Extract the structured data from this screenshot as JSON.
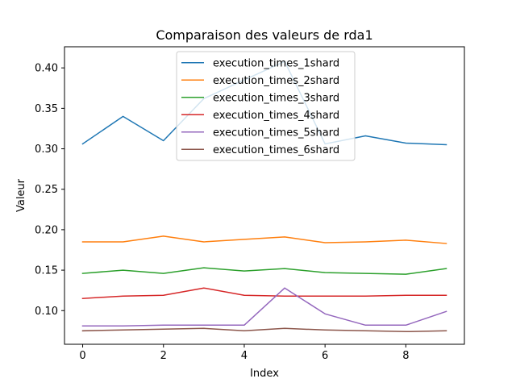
{
  "chart_data": {
    "type": "line",
    "title": "Comparaison des valeurs de rda1",
    "xlabel": "Index",
    "ylabel": "Valeur",
    "xlim": [
      -0.45,
      9.45
    ],
    "ylim": [
      0.0584,
      0.4261
    ],
    "xticks": [
      "0",
      "2",
      "4",
      "6",
      "8"
    ],
    "yticks": [
      "0.10",
      "0.15",
      "0.20",
      "0.25",
      "0.30",
      "0.35",
      "0.40"
    ],
    "grid": false,
    "legend_position": "top-center",
    "x": [
      0,
      1,
      2,
      3,
      4,
      5,
      6,
      7,
      8,
      9
    ],
    "series": [
      {
        "name": "execution_times_1shard",
        "color": "#1f77b4",
        "values": [
          0.306,
          0.34,
          0.31,
          0.362,
          0.385,
          0.408,
          0.306,
          0.316,
          0.307,
          0.305
        ]
      },
      {
        "name": "execution_times_2shard",
        "color": "#ff7f0e",
        "values": [
          0.185,
          0.185,
          0.192,
          0.185,
          0.188,
          0.191,
          0.184,
          0.185,
          0.187,
          0.183
        ]
      },
      {
        "name": "execution_times_3shard",
        "color": "#2ca02c",
        "values": [
          0.146,
          0.15,
          0.146,
          0.153,
          0.149,
          0.152,
          0.147,
          0.146,
          0.145,
          0.152
        ]
      },
      {
        "name": "execution_times_4shard",
        "color": "#d62728",
        "values": [
          0.115,
          0.118,
          0.119,
          0.128,
          0.119,
          0.118,
          0.118,
          0.118,
          0.119,
          0.119
        ]
      },
      {
        "name": "execution_times_5shard",
        "color": "#9467bd",
        "values": [
          0.081,
          0.081,
          0.082,
          0.082,
          0.082,
          0.128,
          0.096,
          0.082,
          0.082,
          0.099
        ]
      },
      {
        "name": "execution_times_6shard",
        "color": "#8c564b",
        "values": [
          0.075,
          0.076,
          0.077,
          0.078,
          0.075,
          0.078,
          0.076,
          0.075,
          0.074,
          0.075
        ]
      }
    ]
  }
}
